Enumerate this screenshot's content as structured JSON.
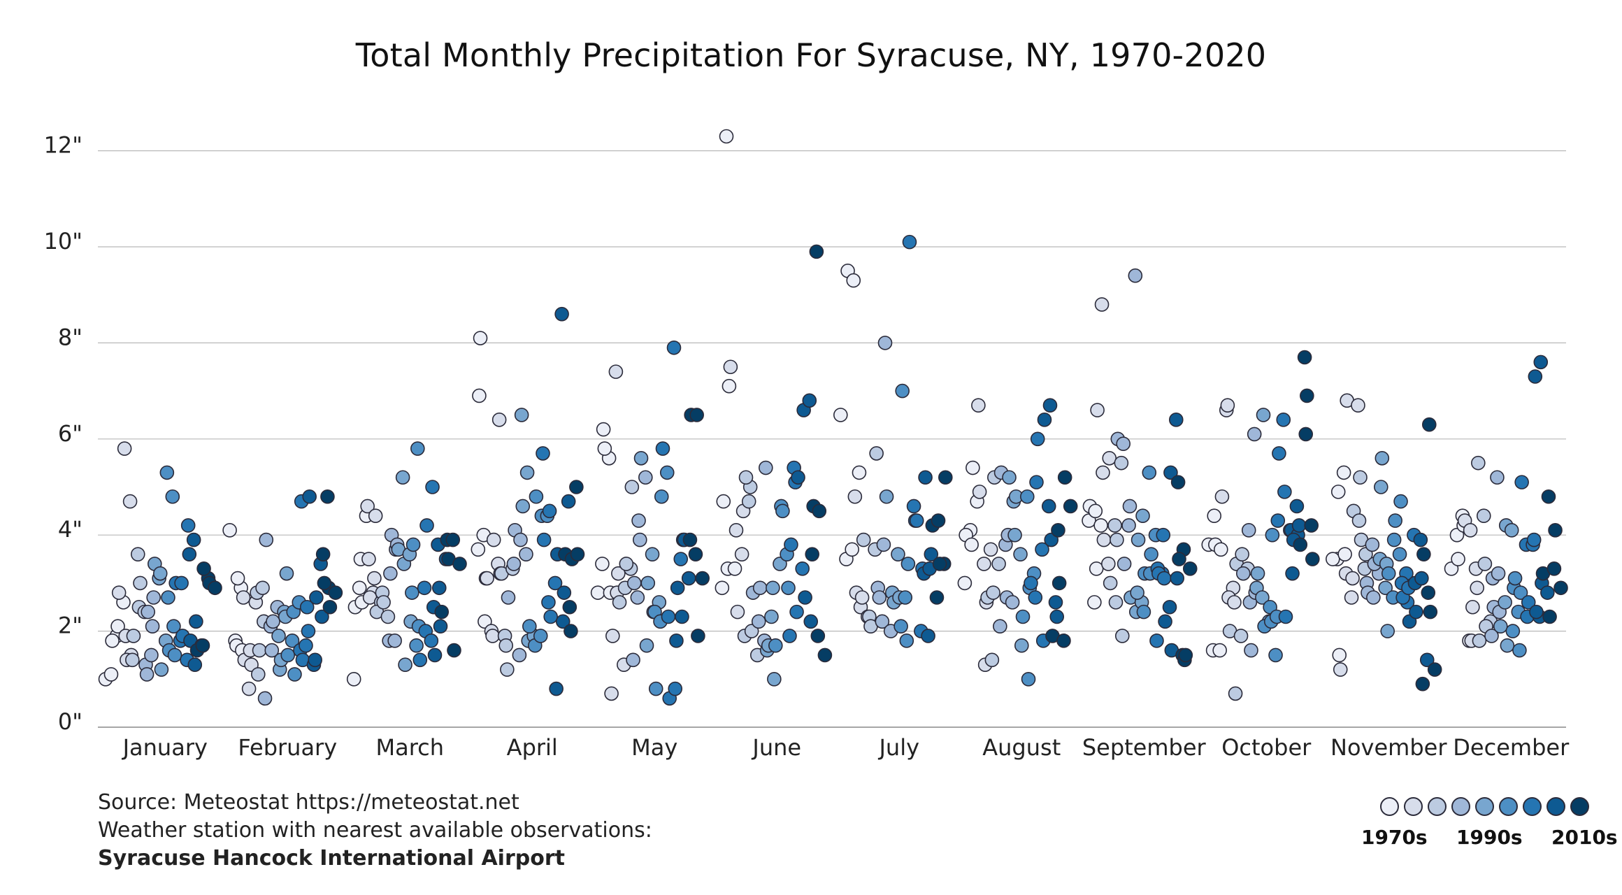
{
  "chart_data": {
    "type": "scatter",
    "title": "Total Monthly Precipitation For Syracuse, NY, 1970-2020",
    "xlabel": "",
    "ylabel": "",
    "ylim": [
      0,
      12.5
    ],
    "y_ticks": [
      "0\"",
      "2\"",
      "4\"",
      "6\"",
      "8\"",
      "10\"",
      "12\""
    ],
    "y_tick_values": [
      0,
      2,
      4,
      6,
      8,
      10,
      12
    ],
    "categories": [
      "January",
      "February",
      "March",
      "April",
      "May",
      "June",
      "July",
      "August",
      "September",
      "October",
      "November",
      "December"
    ],
    "decade_colors": [
      "#eceff7",
      "#d7ddeb",
      "#bccbe1",
      "#9fb7d8",
      "#78a6cf",
      "#4d8fc4",
      "#2575b2",
      "#0e5a92",
      "#053d64"
    ],
    "series": [
      {
        "month": "January",
        "values": [
          1.0,
          1.1,
          1.9,
          1.8,
          2.1,
          2.6,
          2.8,
          5.8,
          4.7,
          1.9,
          1.5,
          1.4,
          1.4,
          3.6,
          1.9,
          2.5,
          2.4,
          3.0,
          1.3,
          1.5,
          1.1,
          2.1,
          2.4,
          2.7,
          3.1,
          3.4,
          3.2,
          1.8,
          1.2,
          5.3,
          4.8,
          2.7,
          2.1,
          1.6,
          1.5,
          1.8,
          3.0,
          3.0,
          1.4,
          1.9,
          4.2,
          3.9,
          3.6,
          1.3,
          1.8,
          2.2,
          1.7,
          1.6,
          1.7,
          3.1,
          3.3,
          3.0,
          2.9
        ]
      },
      {
        "month": "February",
        "values": [
          4.1,
          1.8,
          2.9,
          1.7,
          1.6,
          3.1,
          2.7,
          0.8,
          1.4,
          1.6,
          2.6,
          1.3,
          2.8,
          2.9,
          1.1,
          2.2,
          1.6,
          0.6,
          2.1,
          3.9,
          1.6,
          2.5,
          2.2,
          1.9,
          2.4,
          1.2,
          2.3,
          1.4,
          3.2,
          1.8,
          1.5,
          2.4,
          2.6,
          1.1,
          1.6,
          1.7,
          4.7,
          2.5,
          1.4,
          2.0,
          1.3,
          4.8,
          1.4,
          3.4,
          2.7,
          2.3,
          4.8,
          3.6,
          2.9,
          3.0,
          2.5,
          2.8
        ]
      },
      {
        "month": "March",
        "values": [
          1.0,
          2.9,
          2.5,
          3.5,
          4.4,
          2.6,
          4.6,
          2.8,
          3.5,
          3.1,
          2.7,
          4.4,
          2.6,
          2.4,
          2.8,
          2.3,
          2.6,
          1.8,
          1.8,
          3.2,
          3.7,
          4.0,
          3.8,
          5.2,
          3.7,
          3.4,
          3.6,
          1.3,
          2.2,
          1.7,
          2.8,
          5.8,
          3.8,
          2.1,
          2.9,
          1.4,
          2.0,
          1.8,
          4.2,
          5.0,
          3.8,
          2.5,
          2.9,
          1.5,
          2.1,
          3.5,
          2.4,
          3.9,
          3.9,
          3.5,
          1.6,
          3.4
        ]
      },
      {
        "month": "April",
        "values": [
          3.7,
          4.0,
          6.9,
          2.2,
          8.1,
          3.1,
          2.0,
          3.1,
          1.9,
          3.4,
          3.9,
          6.4,
          1.9,
          3.2,
          1.7,
          3.2,
          1.2,
          3.3,
          2.7,
          3.4,
          1.5,
          4.1,
          3.9,
          3.6,
          6.5,
          5.3,
          4.6,
          1.8,
          1.9,
          2.1,
          1.7,
          1.9,
          4.8,
          4.4,
          4.4,
          5.7,
          2.6,
          3.9,
          4.5,
          3.0,
          2.3,
          0.8,
          8.6,
          3.6,
          2.2,
          4.7,
          2.8,
          2.5,
          3.6,
          2.0,
          5.0,
          3.5,
          3.6
        ]
      },
      {
        "month": "May",
        "values": [
          3.4,
          2.8,
          6.2,
          5.6,
          5.8,
          2.8,
          7.4,
          0.7,
          2.8,
          1.9,
          3.2,
          1.3,
          2.6,
          2.9,
          3.3,
          3.4,
          5.0,
          2.7,
          1.4,
          4.3,
          3.0,
          3.9,
          5.2,
          5.6,
          1.7,
          3.6,
          3.0,
          2.4,
          2.6,
          2.4,
          2.2,
          0.8,
          4.8,
          5.3,
          5.8,
          2.3,
          7.9,
          0.6,
          0.8,
          3.5,
          1.8,
          2.3,
          2.9,
          3.9,
          3.1,
          3.9,
          3.9,
          3.6,
          6.5,
          6.5,
          3.1,
          1.9
        ]
      },
      {
        "month": "June",
        "values": [
          12.3,
          2.9,
          3.3,
          4.7,
          7.1,
          3.3,
          7.5,
          4.1,
          3.6,
          2.4,
          4.5,
          4.7,
          1.9,
          5.0,
          5.2,
          2.0,
          1.5,
          2.8,
          2.2,
          1.8,
          2.9,
          5.4,
          2.3,
          1.6,
          2.9,
          1.7,
          1.0,
          3.4,
          1.7,
          4.6,
          3.6,
          4.5,
          2.9,
          5.4,
          1.9,
          5.1,
          3.8,
          2.4,
          3.3,
          5.2,
          6.6,
          6.8,
          2.7,
          2.2,
          9.9,
          3.6,
          1.9,
          4.6,
          4.5,
          1.5
        ]
      },
      {
        "month": "July",
        "values": [
          6.5,
          3.5,
          3.7,
          9.5,
          9.3,
          5.3,
          4.8,
          2.5,
          2.8,
          2.7,
          2.3,
          3.9,
          2.3,
          3.7,
          2.1,
          5.7,
          2.2,
          2.9,
          3.8,
          2.7,
          8.0,
          2.0,
          4.8,
          2.8,
          3.6,
          2.6,
          2.7,
          2.7,
          2.1,
          1.8,
          7.0,
          3.4,
          4.6,
          10.1,
          4.3,
          2.0,
          4.3,
          3.3,
          1.9,
          3.2,
          3.3,
          5.2,
          3.6,
          2.7,
          4.2,
          4.3,
          3.4,
          3.4,
          5.2
        ]
      },
      {
        "month": "August",
        "values": [
          3.0,
          4.1,
          4.0,
          3.8,
          4.7,
          5.4,
          6.7,
          3.4,
          4.9,
          1.3,
          3.7,
          2.6,
          1.4,
          2.7,
          2.8,
          3.4,
          5.2,
          2.1,
          3.8,
          5.3,
          2.7,
          2.6,
          4.0,
          4.7,
          5.2,
          4.0,
          3.6,
          4.8,
          1.7,
          4.8,
          2.3,
          1.0,
          3.2,
          2.9,
          2.7,
          3.0,
          5.1,
          3.7,
          6.0,
          1.8,
          4.6,
          6.4,
          6.7,
          2.6,
          3.9,
          2.3,
          1.9,
          4.1,
          1.8,
          3.0,
          5.2,
          4.6
        ]
      },
      {
        "month": "September",
        "values": [
          4.3,
          2.6,
          4.6,
          4.5,
          4.2,
          3.3,
          8.8,
          6.6,
          5.3,
          3.4,
          3.9,
          5.6,
          4.2,
          3.0,
          2.6,
          5.5,
          3.9,
          1.9,
          6.0,
          5.9,
          4.2,
          3.4,
          4.6,
          9.4,
          2.7,
          2.4,
          2.6,
          2.8,
          4.4,
          3.9,
          2.4,
          5.3,
          3.2,
          3.2,
          4.0,
          3.6,
          1.8,
          3.2,
          3.3,
          4.0,
          3.2,
          3.1,
          2.5,
          2.2,
          5.3,
          6.4,
          1.6,
          3.1,
          1.5,
          5.1,
          3.7,
          3.5,
          1.4,
          3.3,
          1.5
        ]
      },
      {
        "month": "October",
        "values": [
          1.6,
          3.8,
          4.4,
          1.6,
          3.8,
          3.7,
          6.6,
          4.8,
          6.7,
          2.9,
          2.7,
          2.6,
          2.0,
          0.7,
          1.9,
          3.4,
          3.6,
          3.3,
          3.2,
          4.1,
          6.1,
          2.6,
          2.8,
          1.6,
          2.9,
          2.7,
          3.2,
          6.5,
          2.2,
          2.1,
          2.5,
          1.5,
          2.2,
          2.3,
          4.0,
          4.3,
          6.4,
          5.7,
          4.9,
          4.1,
          2.3,
          4.1,
          4.6,
          3.2,
          4.0,
          3.9,
          4.2,
          7.7,
          3.8,
          6.1,
          4.2,
          6.9,
          3.5
        ]
      },
      {
        "month": "November",
        "values": [
          3.5,
          3.5,
          4.9,
          5.3,
          1.5,
          3.6,
          1.2,
          3.2,
          2.7,
          6.8,
          3.1,
          6.7,
          4.5,
          4.3,
          3.3,
          5.2,
          3.6,
          3.9,
          3.0,
          3.8,
          2.8,
          2.7,
          3.2,
          3.4,
          3.5,
          2.9,
          5.0,
          3.4,
          5.6,
          2.0,
          2.7,
          3.2,
          3.9,
          3.6,
          4.3,
          4.7,
          3.2,
          3.0,
          2.6,
          2.7,
          2.9,
          4.0,
          2.2,
          3.0,
          3.9,
          2.4,
          3.1,
          1.4,
          0.9,
          2.8,
          3.6,
          6.3,
          1.2,
          2.4
        ]
      },
      {
        "month": "December",
        "values": [
          3.3,
          4.0,
          4.4,
          3.5,
          4.2,
          1.8,
          4.3,
          4.1,
          3.3,
          1.8,
          2.9,
          2.5,
          5.5,
          4.4,
          1.8,
          3.4,
          2.2,
          2.1,
          1.9,
          5.2,
          3.1,
          3.2,
          2.5,
          2.4,
          2.6,
          2.1,
          4.2,
          4.1,
          1.7,
          2.0,
          2.4,
          2.9,
          1.6,
          3.1,
          2.8,
          3.8,
          5.1,
          2.3,
          3.8,
          2.6,
          3.9,
          2.3,
          7.3,
          7.6,
          2.4,
          3.0,
          2.8,
          3.2,
          4.8,
          3.3,
          2.3,
          4.1,
          2.9
        ]
      }
    ],
    "legend": {
      "labels": [
        "1970s",
        "1990s",
        "2010s"
      ],
      "placement": "bottom-right"
    }
  },
  "footer": {
    "source": "Source: Meteostat https://meteostat.net",
    "station_note": "Weather station with nearest available observations:",
    "station_name": "Syracuse Hancock International Airport"
  }
}
